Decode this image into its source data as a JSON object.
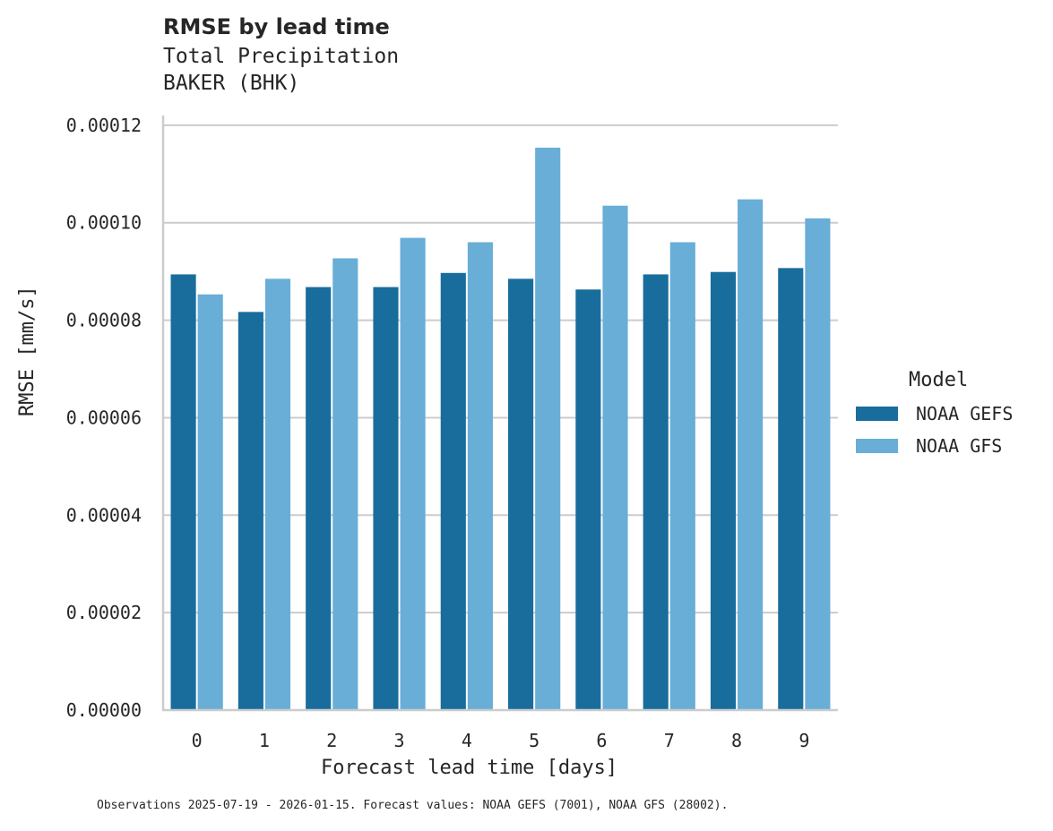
{
  "chart_data": {
    "type": "bar",
    "title": "RMSE by lead time",
    "subtitle": [
      "Total Precipitation",
      "BAKER (BHK)"
    ],
    "xlabel": "Forecast lead time [days]",
    "ylabel": "RMSE [mm/s]",
    "categories": [
      "0",
      "1",
      "2",
      "3",
      "4",
      "5",
      "6",
      "7",
      "8",
      "9"
    ],
    "series": [
      {
        "name": "NOAA GEFS",
        "color": "#186d9c",
        "values": [
          8.94e-05,
          8.17e-05,
          8.68e-05,
          8.68e-05,
          8.97e-05,
          8.85e-05,
          8.63e-05,
          8.94e-05,
          8.99e-05,
          9.07e-05
        ]
      },
      {
        "name": "NOAA GFS",
        "color": "#68aed7",
        "values": [
          8.53e-05,
          8.85e-05,
          9.27e-05,
          9.69e-05,
          9.6e-05,
          0.0001154,
          0.0001035,
          9.6e-05,
          0.0001048,
          0.0001009
        ]
      }
    ],
    "yticks": [
      "0.00000",
      "0.00002",
      "0.00004",
      "0.00006",
      "0.00008",
      "0.00010",
      "0.00012"
    ],
    "ylim": [
      0,
      0.000122
    ],
    "grid": "horizontal",
    "legend": {
      "title": "Model",
      "position": "right"
    },
    "footnote": "Observations 2025-07-19 - 2026-01-15. Forecast values: NOAA GEFS (7001), NOAA GFS (28002)."
  }
}
